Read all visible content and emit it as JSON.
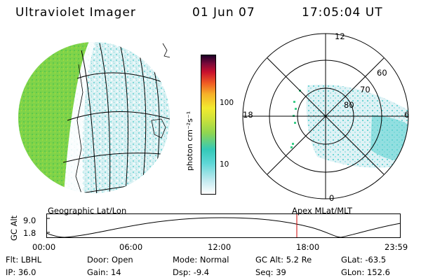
{
  "header": {
    "instrument": "Ultraviolet Imager",
    "date": "01 Jun 07",
    "time": "17:05:04 UT"
  },
  "left_panel": {
    "label": "Geographic Lat/Lon"
  },
  "right_panel": {
    "label": "Apex MLat/MLT",
    "mlt_labels": [
      "12",
      "18",
      "6",
      "0"
    ],
    "mlat_labels": [
      "60",
      "70",
      "80"
    ]
  },
  "colorbar": {
    "unit_label": "photon cm⁻²s⁻¹",
    "tick_labels": [
      "100",
      "10"
    ]
  },
  "altitude_plot": {
    "ylabel": "GC Alt",
    "y_ticks": [
      "9.0",
      "1.8"
    ],
    "x_ticks": [
      "00:00",
      "06:00",
      "12:00",
      "18:00",
      "23:59"
    ],
    "marker_time": "17:05",
    "marker_color": "#cc0000"
  },
  "status": {
    "row1": [
      {
        "label": "Flt:",
        "value": "LBHL"
      },
      {
        "label": "Door:",
        "value": "Open"
      },
      {
        "label": "Mode:",
        "value": "Normal"
      },
      {
        "label": "GC Alt:",
        "value": "5.2 Re"
      },
      {
        "label": "GLat:",
        "value": "-63.5"
      }
    ],
    "row2": [
      {
        "label": "IP:",
        "value": "36.0"
      },
      {
        "label": "Gain:",
        "value": "14"
      },
      {
        "label": "Dsp:",
        "value": "-9.4"
      },
      {
        "label": "Seq:",
        "value": "39"
      },
      {
        "label": "GLon:",
        "value": "152.6"
      }
    ]
  }
}
